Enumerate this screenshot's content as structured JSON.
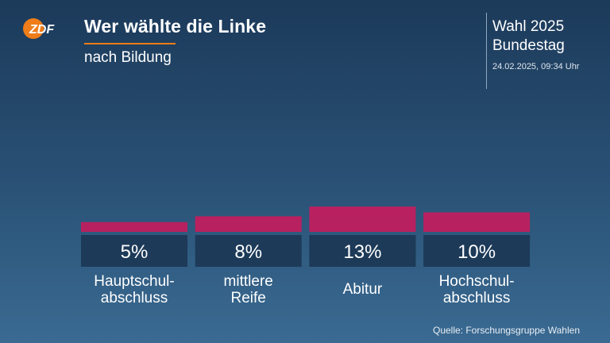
{
  "header": {
    "logo": "ZDF",
    "title": "Wer wählte die Linke",
    "subtitle": "nach Bildung",
    "election_line1": "Wahl 2025",
    "election_line2": "Bundestag",
    "timestamp": "24.02.2025, 09:34 Uhr"
  },
  "colors": {
    "bar": "#b8215f",
    "label_box": "#1d3a58",
    "accent": "#f07d19"
  },
  "source": "Quelle: Forschungsgruppe Wahlen",
  "chart_data": {
    "type": "bar",
    "title": "Wer wählte die Linke",
    "subtitle": "nach Bildung",
    "categories": [
      [
        "Hauptschul-",
        "abschluss"
      ],
      [
        "mittlere",
        "Reife"
      ],
      [
        "Abitur"
      ],
      [
        "Hochschul-",
        "abschluss"
      ]
    ],
    "values": [
      5,
      8,
      13,
      10
    ],
    "value_labels": [
      "5%",
      "8%",
      "13%",
      "10%"
    ],
    "unit": "%",
    "ylim": [
      0,
      100
    ],
    "grid": false
  }
}
